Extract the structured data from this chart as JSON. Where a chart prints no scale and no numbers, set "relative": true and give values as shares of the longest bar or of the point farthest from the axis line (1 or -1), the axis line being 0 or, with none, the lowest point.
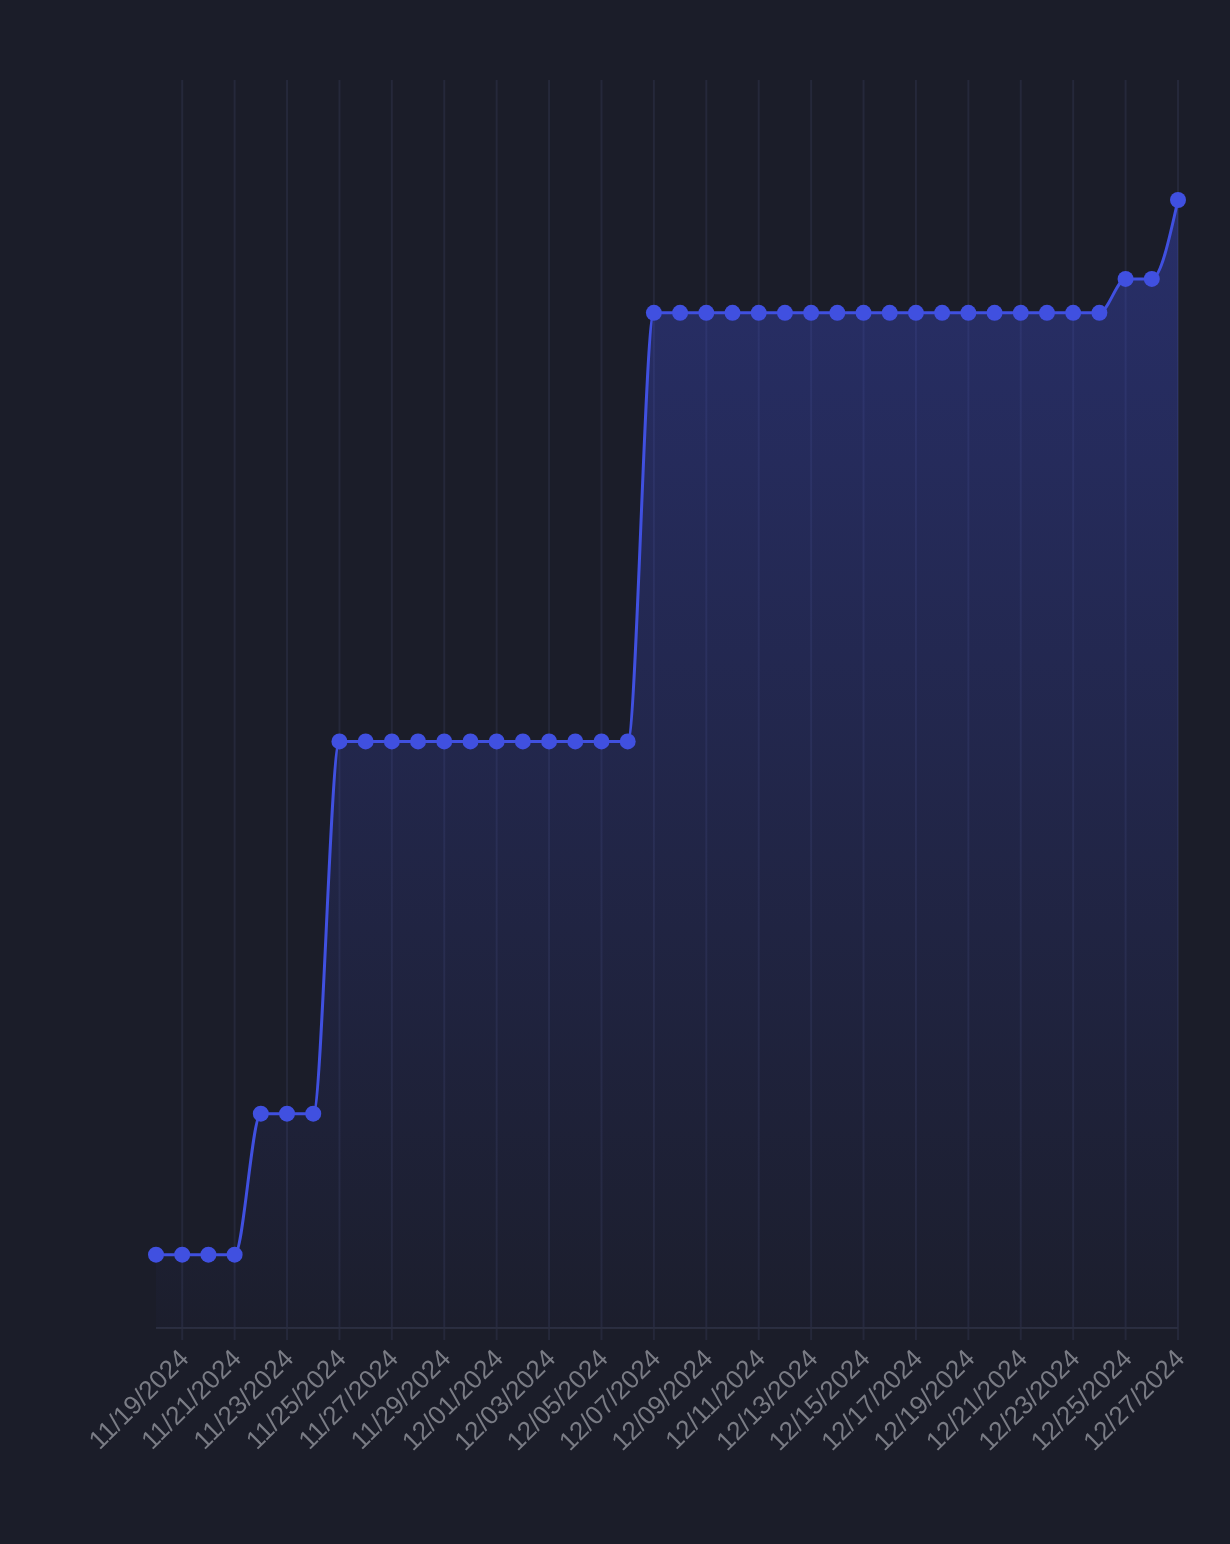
{
  "chart_data": {
    "type": "area",
    "relative": true,
    "grid": "x",
    "marker": "circle",
    "line_style": "solid",
    "categories": [
      null,
      "11/19/2024",
      null,
      "11/21/2024",
      null,
      "11/23/2024",
      null,
      "11/25/2024",
      null,
      "11/27/2024",
      null,
      "11/29/2024",
      null,
      "12/01/2024",
      null,
      "12/03/2024",
      null,
      "12/05/2024",
      null,
      "12/07/2024",
      null,
      "12/09/2024",
      null,
      "12/11/2024",
      null,
      "12/13/2024",
      null,
      "12/15/2024",
      null,
      "12/17/2024",
      null,
      "12/19/2024",
      null,
      "12/21/2024",
      null,
      "12/23/2024",
      null,
      "12/25/2024",
      null,
      "12/27/2024"
    ],
    "series": [
      {
        "color": "#4050e0",
        "values": [
          0.065,
          0.065,
          0.065,
          0.065,
          0.19,
          0.19,
          0.19,
          0.52,
          0.52,
          0.52,
          0.52,
          0.52,
          0.52,
          0.52,
          0.52,
          0.52,
          0.52,
          0.52,
          0.52,
          0.9,
          0.9,
          0.9,
          0.9,
          0.9,
          0.9,
          0.9,
          0.9,
          0.9,
          0.9,
          0.9,
          0.9,
          0.9,
          0.9,
          0.9,
          0.9,
          0.9,
          0.9,
          0.93,
          0.93,
          1
        ]
      }
    ]
  }
}
